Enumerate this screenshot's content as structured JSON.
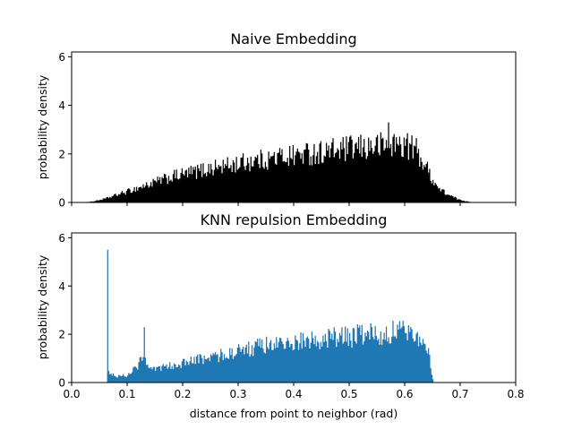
{
  "chart_data": [
    {
      "type": "histogram",
      "title": "Naive Embedding",
      "xlabel": "",
      "ylabel": "probability density",
      "xlim": [
        0.0,
        0.8
      ],
      "ylim": [
        0,
        6.2
      ],
      "yticks": [
        "0",
        "2",
        "4",
        "6"
      ],
      "xticks": [],
      "grid": false,
      "color": "#000000",
      "bin_width": 0.002,
      "bins_x_start": [
        0.0,
        0.02,
        0.04,
        0.06,
        0.08,
        0.1,
        0.12,
        0.14,
        0.16,
        0.18,
        0.2,
        0.22,
        0.24,
        0.26,
        0.28,
        0.3,
        0.32,
        0.34,
        0.36,
        0.38,
        0.4,
        0.42,
        0.44,
        0.46,
        0.48,
        0.5,
        0.52,
        0.54,
        0.56,
        0.58,
        0.6,
        0.62,
        0.64,
        0.66,
        0.68,
        0.7,
        0.72,
        0.74,
        0.76,
        0.78
      ],
      "density_envelope": [
        0.0,
        0.0,
        0.05,
        0.15,
        0.3,
        0.45,
        0.6,
        0.75,
        0.9,
        1.05,
        1.15,
        1.25,
        1.35,
        1.45,
        1.5,
        1.6,
        1.7,
        1.75,
        1.8,
        1.9,
        1.95,
        2.0,
        2.05,
        2.1,
        2.15,
        2.2,
        2.25,
        2.3,
        2.35,
        2.4,
        2.4,
        2.2,
        1.4,
        0.6,
        0.3,
        0.1,
        0.02,
        0.0,
        0.0,
        0.0
      ],
      "peak": {
        "x": 0.57,
        "y": 3.3
      }
    },
    {
      "type": "histogram",
      "title": "KNN repulsion Embedding",
      "xlabel": "distance from point to neighbor (rad)",
      "ylabel": "probability density",
      "xlim": [
        0.0,
        0.8
      ],
      "ylim": [
        0,
        6.2
      ],
      "yticks": [
        "0",
        "2",
        "4",
        "6"
      ],
      "xticks": [
        "0.0",
        "0.1",
        "0.2",
        "0.3",
        "0.4",
        "0.5",
        "0.6",
        "0.7",
        "0.8"
      ],
      "grid": false,
      "color": "#1f77b4",
      "bin_width": 0.002,
      "bins_x_start": [
        0.064,
        0.08,
        0.1,
        0.12,
        0.13,
        0.14,
        0.16,
        0.18,
        0.2,
        0.22,
        0.24,
        0.26,
        0.28,
        0.3,
        0.32,
        0.34,
        0.36,
        0.38,
        0.4,
        0.42,
        0.44,
        0.46,
        0.48,
        0.5,
        0.52,
        0.54,
        0.56,
        0.58,
        0.6,
        0.62,
        0.64,
        0.652
      ],
      "density_envelope": [
        0.5,
        0.25,
        0.3,
        0.7,
        1.3,
        0.5,
        0.6,
        0.7,
        0.8,
        0.9,
        1.0,
        1.1,
        1.2,
        1.3,
        1.4,
        1.5,
        1.55,
        1.6,
        1.65,
        1.7,
        1.75,
        1.8,
        1.85,
        1.9,
        1.95,
        2.0,
        2.05,
        2.1,
        2.1,
        2.1,
        1.6,
        0.0
      ],
      "spikes": [
        {
          "x": 0.064,
          "y": 5.5
        },
        {
          "x": 0.13,
          "y": 2.3
        }
      ]
    }
  ]
}
